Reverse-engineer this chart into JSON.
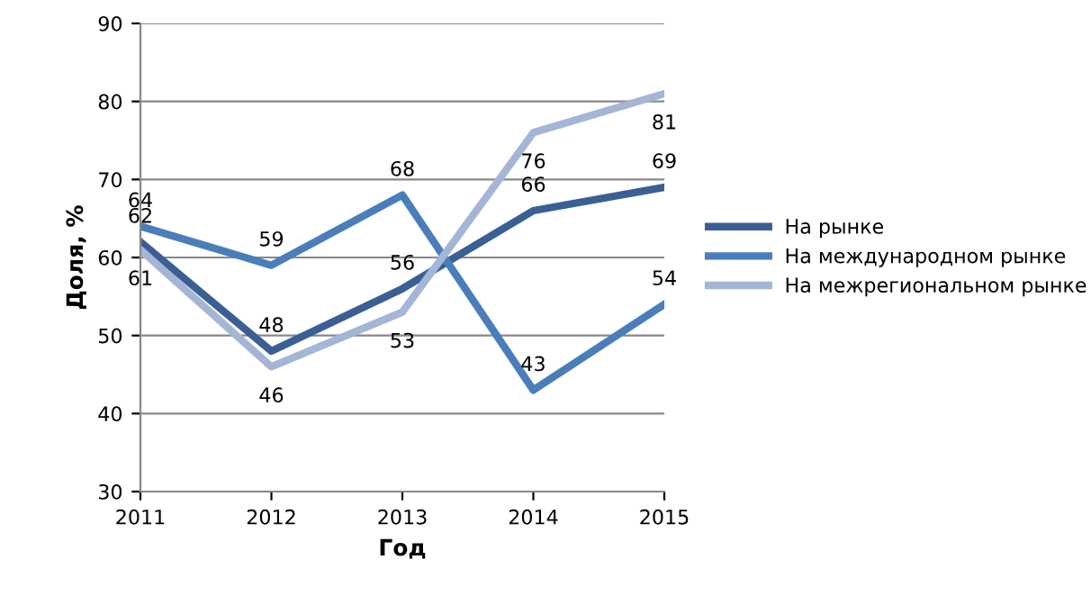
{
  "chart_data": {
    "type": "line",
    "xlabel": "Год",
    "ylabel": "Доля, %",
    "x": [
      2011,
      2012,
      2013,
      2014,
      2015
    ],
    "series": [
      {
        "name": "На рынке",
        "color": "#3a5f94",
        "values": [
          62,
          48,
          56,
          66,
          69
        ]
      },
      {
        "name": "На международном рынке",
        "color": "#4a7ebb",
        "values": [
          64,
          59,
          68,
          43,
          54
        ]
      },
      {
        "name": "На межрегиональном рынке",
        "color": "#a5b5d6",
        "values": [
          61,
          46,
          53,
          76,
          81
        ]
      }
    ],
    "xlim": [
      2011,
      2015
    ],
    "xticks": [
      2011,
      2012,
      2013,
      2014,
      2015
    ],
    "ylim": [
      30,
      90
    ],
    "yticks": [
      30,
      40,
      50,
      60,
      70,
      80,
      90
    ],
    "grid": "y",
    "legend": "right",
    "data_labels": true,
    "marker": "none",
    "line_style": "solid"
  }
}
